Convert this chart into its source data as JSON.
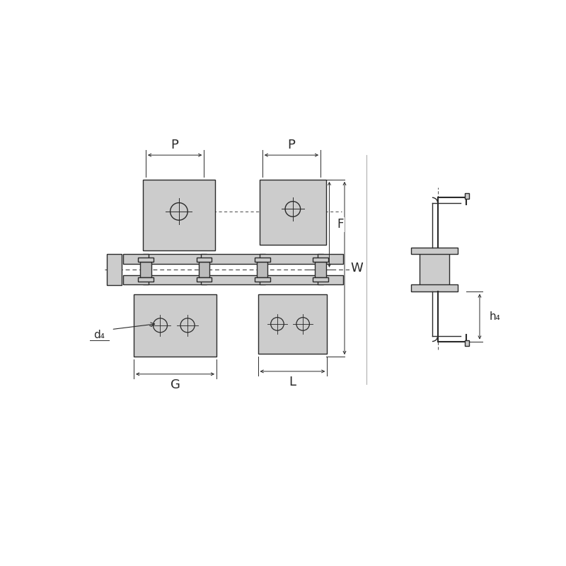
{
  "bg_color": "#ffffff",
  "line_color": "#2a2a2a",
  "fill_color": "#cccccc",
  "labels": {
    "P": "P",
    "G": "G",
    "L": "L",
    "W": "W",
    "F": "F",
    "d4": "d₄",
    "h4": "h₄"
  },
  "lw_main": 1.0,
  "lw_dim": 0.7,
  "fontsize_dim": 12
}
